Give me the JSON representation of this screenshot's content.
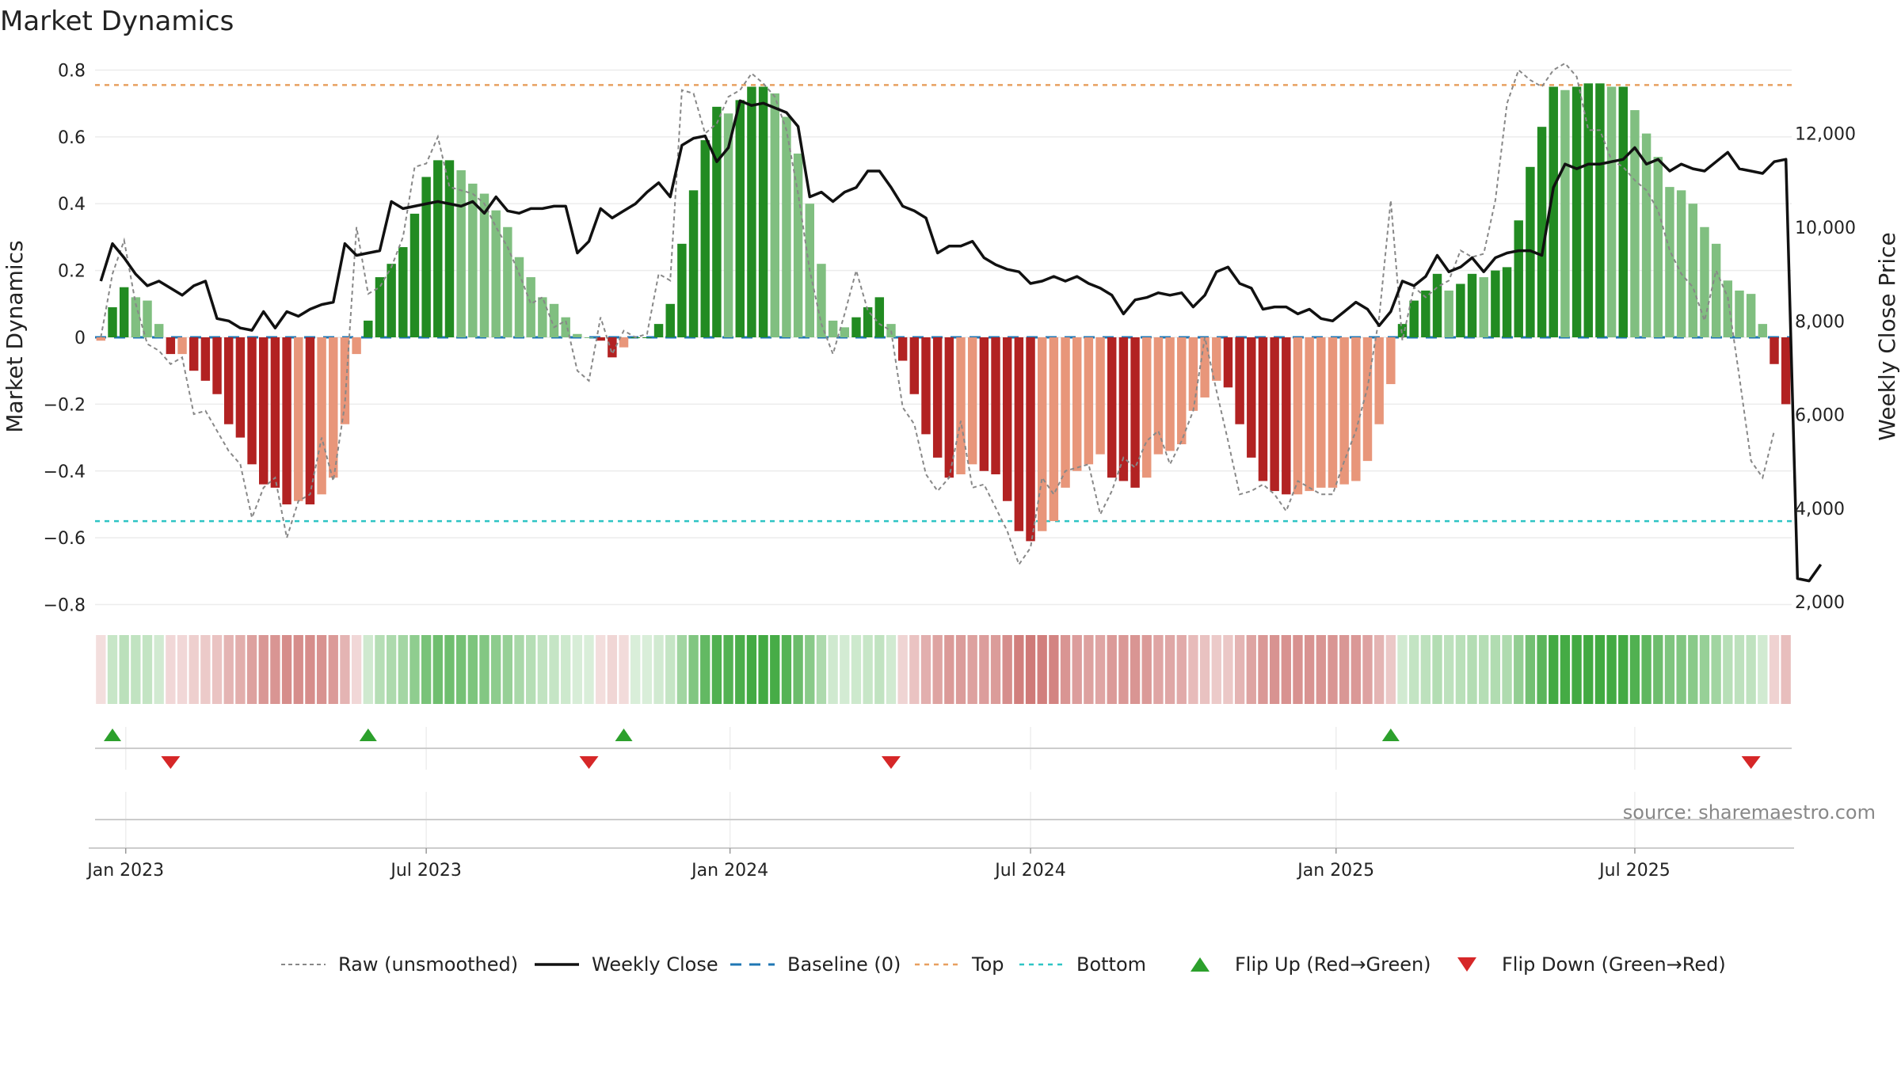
{
  "chart_data": {
    "type": "bar",
    "title": "Market Dynamics",
    "ylabel": "Market Dynamics",
    "y2label": "Weekly Close Price",
    "ylim": [
      -0.82,
      0.82
    ],
    "y2lim": [
      1800,
      13500
    ],
    "y_ticks": [
      -0.8,
      -0.6,
      -0.4,
      -0.2,
      0,
      0.2,
      0.4,
      0.6,
      0.8
    ],
    "y_tick_labels": [
      "−0.8",
      "−0.6",
      "−0.4",
      "−0.2",
      "0",
      "0.2",
      "0.4",
      "0.6",
      "0.8"
    ],
    "y2_ticks": [
      2000,
      4000,
      6000,
      8000,
      10000,
      12000
    ],
    "y2_tick_labels": [
      "2,000",
      "4,000",
      "6,000",
      "8,000",
      "10,000",
      "12,000"
    ],
    "x_tick_labels": [
      "Jan 2023",
      "Jul 2023",
      "Jan 2024",
      "Jul 2024",
      "Jan 2025",
      "Jul 2025"
    ],
    "x_tick_weeks": [
      2.14,
      28.0,
      54.14,
      80.0,
      106.29,
      132.0
    ],
    "start_date": "2022-12-18",
    "end_date": "2025-09-28",
    "top_line": 0.755,
    "bottom_line": -0.55,
    "baseline": 0,
    "bar_values": [
      -0.01,
      0.09,
      0.15,
      0.12,
      0.11,
      0.04,
      -0.05,
      -0.05,
      -0.1,
      -0.13,
      -0.17,
      -0.26,
      -0.3,
      -0.38,
      -0.44,
      -0.45,
      -0.5,
      -0.49,
      -0.5,
      -0.47,
      -0.42,
      -0.26,
      -0.05,
      0.05,
      0.18,
      0.22,
      0.27,
      0.37,
      0.48,
      0.53,
      0.53,
      0.5,
      0.46,
      0.43,
      0.38,
      0.33,
      0.24,
      0.18,
      0.12,
      0.1,
      0.06,
      0.01,
      0.0,
      -0.01,
      -0.06,
      -0.03,
      0.0,
      0.0,
      0.04,
      0.1,
      0.28,
      0.44,
      0.59,
      0.69,
      0.67,
      0.71,
      0.75,
      0.75,
      0.73,
      0.66,
      0.55,
      0.4,
      0.22,
      0.05,
      0.03,
      0.06,
      0.09,
      0.12,
      0.04,
      -0.07,
      -0.17,
      -0.29,
      -0.36,
      -0.42,
      -0.41,
      -0.38,
      -0.4,
      -0.41,
      -0.49,
      -0.58,
      -0.61,
      -0.58,
      -0.55,
      -0.45,
      -0.4,
      -0.38,
      -0.35,
      -0.42,
      -0.43,
      -0.45,
      -0.42,
      -0.35,
      -0.34,
      -0.32,
      -0.22,
      -0.18,
      -0.13,
      -0.15,
      -0.26,
      -0.36,
      -0.43,
      -0.46,
      -0.47,
      -0.47,
      -0.46,
      -0.45,
      -0.45,
      -0.44,
      -0.43,
      -0.37,
      -0.26,
      -0.14,
      0.04,
      0.11,
      0.14,
      0.19,
      0.14,
      0.16,
      0.19,
      0.18,
      0.2,
      0.21,
      0.35,
      0.51,
      0.63,
      0.75,
      0.74,
      0.75,
      0.76,
      0.76,
      0.75,
      0.75,
      0.68,
      0.61,
      0.54,
      0.45,
      0.44,
      0.4,
      0.33,
      0.28,
      0.17,
      0.14,
      0.13,
      0.04,
      -0.08,
      -0.2
    ],
    "raw_values": [
      0.0,
      0.19,
      0.29,
      0.1,
      -0.02,
      -0.04,
      -0.08,
      -0.06,
      -0.23,
      -0.22,
      -0.28,
      -0.34,
      -0.38,
      -0.54,
      -0.45,
      -0.42,
      -0.6,
      -0.49,
      -0.47,
      -0.3,
      -0.43,
      -0.2,
      0.33,
      0.13,
      0.15,
      0.21,
      0.3,
      0.51,
      0.52,
      0.6,
      0.45,
      0.44,
      0.43,
      0.4,
      0.33,
      0.27,
      0.19,
      0.1,
      0.12,
      0.03,
      0.05,
      -0.1,
      -0.13,
      0.06,
      -0.05,
      0.02,
      0.0,
      0.01,
      0.19,
      0.17,
      0.74,
      0.73,
      0.61,
      0.64,
      0.72,
      0.74,
      0.79,
      0.76,
      0.72,
      0.62,
      0.43,
      0.2,
      0.04,
      -0.05,
      0.07,
      0.2,
      0.08,
      0.04,
      0.02,
      -0.21,
      -0.26,
      -0.41,
      -0.46,
      -0.42,
      -0.25,
      -0.45,
      -0.44,
      -0.51,
      -0.58,
      -0.68,
      -0.63,
      -0.42,
      -0.47,
      -0.4,
      -0.39,
      -0.38,
      -0.53,
      -0.46,
      -0.36,
      -0.39,
      -0.31,
      -0.28,
      -0.38,
      -0.31,
      -0.22,
      0.0,
      -0.16,
      -0.31,
      -0.47,
      -0.46,
      -0.44,
      -0.47,
      -0.52,
      -0.43,
      -0.45,
      -0.47,
      -0.47,
      -0.37,
      -0.28,
      -0.15,
      0.06,
      0.41,
      -0.01,
      0.15,
      0.12,
      0.15,
      0.17,
      0.26,
      0.24,
      0.25,
      0.41,
      0.7,
      0.8,
      0.77,
      0.75,
      0.8,
      0.82,
      0.78,
      0.62,
      0.62,
      0.53,
      0.51,
      0.47,
      0.44,
      0.38,
      0.26,
      0.19,
      0.15,
      0.05,
      0.2,
      0.12,
      -0.12,
      -0.37,
      -0.42,
      -0.28
    ],
    "close_values": [
      8850,
      9650,
      9350,
      9000,
      8750,
      8850,
      8700,
      8550,
      8750,
      8850,
      8050,
      8000,
      7850,
      7800,
      8200,
      7850,
      8200,
      8100,
      8250,
      8350,
      8400,
      9650,
      9400,
      9450,
      9500,
      10550,
      10400,
      10450,
      10500,
      10550,
      10500,
      10450,
      10550,
      10300,
      10650,
      10350,
      10300,
      10400,
      10400,
      10450,
      10450,
      9450,
      9700,
      10400,
      10200,
      10350,
      10500,
      10750,
      10950,
      10650,
      11750,
      11900,
      11950,
      11400,
      11700,
      12700,
      12600,
      12650,
      12550,
      12450,
      12150,
      10650,
      10750,
      10550,
      10750,
      10850,
      11200,
      11200,
      10850,
      10450,
      10350,
      10200,
      9450,
      9600,
      9600,
      9700,
      9350,
      9200,
      9100,
      9050,
      8800,
      8850,
      8950,
      8850,
      8950,
      8800,
      8700,
      8550,
      8150,
      8450,
      8500,
      8600,
      8550,
      8600,
      8300,
      8550,
      9050,
      9150,
      8800,
      8700,
      8250,
      8300,
      8300,
      8150,
      8250,
      8050,
      8000,
      8200,
      8400,
      8250,
      7900,
      8200,
      8850,
      8750,
      8950,
      9400,
      9050,
      9150,
      9350,
      9050,
      9350,
      9450,
      9500,
      9500,
      9400,
      10850,
      11350,
      11250,
      11350,
      11350,
      11400,
      11450,
      11700,
      11350,
      11450,
      11200,
      11350,
      11250,
      11200,
      11400,
      11600,
      11250,
      11200,
      11150,
      11400,
      11450,
      2500,
      2450,
      2800
    ],
    "flip_up_weeks": [
      1,
      23,
      45,
      111
    ],
    "flip_down_weeks": [
      6,
      42,
      68,
      142
    ],
    "colors": {
      "strong_green": "#228b22",
      "light_green": "#80bf80",
      "strong_red": "#b22222",
      "light_red": "#e8967a",
      "close_line": "#111111",
      "raw_line": "#888888",
      "baseline": "#1f77b4",
      "top": "#e8a060",
      "bottom": "#2ec4c4",
      "flip_up": "#2ca02c",
      "flip_down": "#d62728"
    },
    "legend": [
      {
        "label": "Raw (unsmoothed)",
        "key": "raw"
      },
      {
        "label": "Weekly Close",
        "key": "close"
      },
      {
        "label": "Baseline (0)",
        "key": "baseline"
      },
      {
        "label": "Top",
        "key": "top"
      },
      {
        "label": "Bottom",
        "key": "bottom"
      },
      {
        "label": "Flip Up (Red→Green)",
        "key": "flipup"
      },
      {
        "label": "Flip Down (Green→Red)",
        "key": "flipdown"
      }
    ],
    "legend_placement": "bottom-center",
    "source": "source: sharemaestro.com"
  }
}
